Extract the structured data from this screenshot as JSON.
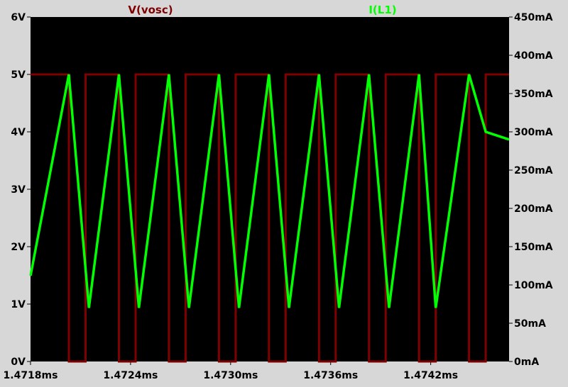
{
  "chart_data": {
    "type": "line",
    "background": "#000000",
    "frame_color": "#d7d7d7",
    "grid": false,
    "x": {
      "unit": "ms",
      "range": [
        1.4718,
        1.47467
      ],
      "ticks": [
        1.4718,
        1.4724,
        1.473,
        1.4736,
        1.4742
      ],
      "tick_labels": [
        "1.4718ms",
        "1.4724ms",
        "1.4730ms",
        "1.4736ms",
        "1.4742ms"
      ]
    },
    "y_left": {
      "unit": "V",
      "range": [
        0,
        6
      ],
      "ticks": [
        0,
        1,
        2,
        3,
        4,
        5,
        6
      ],
      "tick_labels": [
        "0V",
        "1V",
        "2V",
        "3V",
        "4V",
        "5V",
        "6V"
      ]
    },
    "y_right": {
      "unit": "mA",
      "range": [
        0,
        450
      ],
      "ticks": [
        0,
        50,
        100,
        150,
        200,
        250,
        300,
        350,
        400,
        450
      ],
      "tick_labels": [
        "0mA",
        "50mA",
        "100mA",
        "150mA",
        "200mA",
        "250mA",
        "300mA",
        "350mA",
        "400mA",
        "450mA"
      ]
    },
    "series": [
      {
        "name": "V(vosc)",
        "color": "#7f0000",
        "axis": "left",
        "x": [
          1.4718,
          1.47203,
          1.47203,
          1.47213,
          1.47213,
          1.47233,
          1.47233,
          1.47243,
          1.47243,
          1.47263,
          1.47263,
          1.47273,
          1.47273,
          1.47293,
          1.47293,
          1.47303,
          1.47303,
          1.47323,
          1.47323,
          1.47333,
          1.47333,
          1.47353,
          1.47353,
          1.47363,
          1.47363,
          1.47383,
          1.47383,
          1.47393,
          1.47393,
          1.47413,
          1.47413,
          1.47423,
          1.47423,
          1.47443,
          1.47443,
          1.47453,
          1.47453,
          1.47467
        ],
        "values": [
          5,
          5,
          0,
          0,
          5,
          5,
          0,
          0,
          5,
          5,
          0,
          0,
          5,
          5,
          0,
          0,
          5,
          5,
          0,
          0,
          5,
          5,
          0,
          0,
          5,
          5,
          0,
          0,
          5,
          5,
          0,
          0,
          5,
          5,
          0,
          0,
          5,
          5
        ]
      },
      {
        "name": "I(L1)",
        "color": "#00ff00",
        "axis": "right",
        "x": [
          1.4718,
          1.47203,
          1.47215,
          1.47233,
          1.47245,
          1.47263,
          1.47275,
          1.47293,
          1.47305,
          1.47323,
          1.47335,
          1.47353,
          1.47365,
          1.47383,
          1.47395,
          1.47413,
          1.47423,
          1.47443,
          1.47453,
          1.47467
        ],
        "values": [
          112,
          375,
          70,
          375,
          70,
          375,
          70,
          375,
          70,
          375,
          70,
          375,
          70,
          375,
          70,
          375,
          70,
          375,
          300,
          290
        ]
      }
    ]
  }
}
